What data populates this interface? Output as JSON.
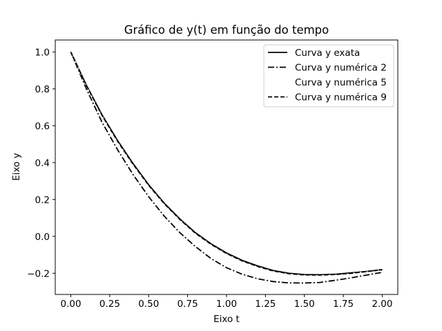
{
  "chart_data": {
    "type": "line",
    "title": "Gráfico de y(t) em função do tempo",
    "xlabel": "Eixo t",
    "ylabel": "Eixo y",
    "xlim": [
      -0.1,
      2.1
    ],
    "ylim": [
      -0.315,
      1.065
    ],
    "xticks": [
      "0.00",
      "0.25",
      "0.50",
      "0.75",
      "1.00",
      "1.25",
      "1.50",
      "1.75",
      "2.00"
    ],
    "yticks": [
      "−0.2",
      "0.0",
      "0.2",
      "0.4",
      "0.6",
      "0.8",
      "1.0"
    ],
    "grid": false,
    "legend_position": "top-right",
    "series": [
      {
        "name": "Curva y exata",
        "style": "solid",
        "color": "#000000",
        "x": [
          0.0,
          0.1,
          0.2,
          0.3,
          0.4,
          0.5,
          0.6,
          0.7,
          0.8,
          0.9,
          1.0,
          1.1,
          1.2,
          1.3,
          1.4,
          1.5,
          1.6,
          1.7,
          1.8,
          1.9,
          2.0
        ],
        "y": [
          1.0,
          0.82,
          0.66,
          0.52,
          0.395,
          0.28,
          0.18,
          0.095,
          0.02,
          -0.04,
          -0.09,
          -0.13,
          -0.16,
          -0.185,
          -0.2,
          -0.207,
          -0.208,
          -0.205,
          -0.198,
          -0.19,
          -0.18
        ]
      },
      {
        "name": "Curva y numérica 2",
        "style": "dashdot",
        "color": "#000000",
        "x": [
          0.0,
          0.1,
          0.2,
          0.3,
          0.4,
          0.5,
          0.6,
          0.7,
          0.8,
          0.9,
          1.0,
          1.1,
          1.2,
          1.3,
          1.4,
          1.5,
          1.6,
          1.7,
          1.8,
          1.9,
          2.0
        ],
        "y": [
          1.0,
          0.8,
          0.62,
          0.47,
          0.335,
          0.215,
          0.11,
          0.02,
          -0.055,
          -0.12,
          -0.17,
          -0.205,
          -0.23,
          -0.245,
          -0.252,
          -0.253,
          -0.25,
          -0.238,
          -0.225,
          -0.21,
          -0.195
        ]
      },
      {
        "name": "Curva y numérica 5",
        "style": "dotted",
        "color": "#ffffff",
        "x": [
          0.0,
          0.1,
          0.2,
          0.3,
          0.4,
          0.5,
          0.6,
          0.7,
          0.8,
          0.9,
          1.0,
          1.1,
          1.2,
          1.3,
          1.4,
          1.5,
          1.6,
          1.7,
          1.8,
          1.9,
          2.0
        ],
        "y": [
          1.0,
          0.815,
          0.652,
          0.51,
          0.385,
          0.272,
          0.172,
          0.087,
          0.013,
          -0.047,
          -0.097,
          -0.137,
          -0.167,
          -0.191,
          -0.205,
          -0.212,
          -0.213,
          -0.209,
          -0.202,
          -0.192,
          -0.182
        ]
      },
      {
        "name": "Curva y numérica 9",
        "style": "dashed",
        "color": "#000000",
        "x": [
          0.0,
          0.1,
          0.2,
          0.3,
          0.4,
          0.5,
          0.6,
          0.7,
          0.8,
          0.9,
          1.0,
          1.1,
          1.2,
          1.3,
          1.4,
          1.5,
          1.6,
          1.7,
          1.8,
          1.9,
          2.0
        ],
        "y": [
          1.0,
          0.818,
          0.657,
          0.516,
          0.391,
          0.277,
          0.177,
          0.092,
          0.017,
          -0.043,
          -0.093,
          -0.133,
          -0.163,
          -0.188,
          -0.202,
          -0.209,
          -0.21,
          -0.207,
          -0.2,
          -0.191,
          -0.181
        ]
      }
    ]
  }
}
